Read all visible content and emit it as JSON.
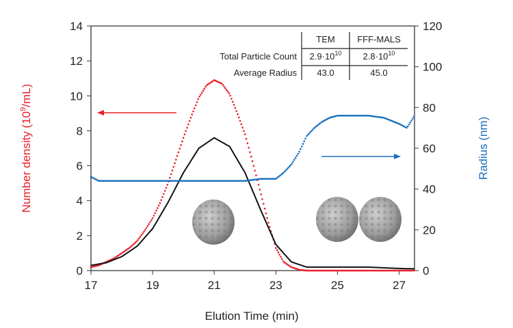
{
  "chart_data": {
    "type": "scatter",
    "xlabel": "Elution Time (min)",
    "ylabel_left": "Number density (10",
    "ylabel_left_sup": "9",
    "ylabel_left_end": "/mL)",
    "ylabel_right": "Radius (nm)",
    "xlim": [
      17,
      27.5
    ],
    "ylim_left": [
      0,
      14
    ],
    "ylim_right": [
      0,
      120
    ],
    "x_ticks": [
      "17",
      "19",
      "21",
      "23",
      "25",
      "27"
    ],
    "y_left_ticks": [
      "0",
      "2",
      "4",
      "6",
      "8",
      "10",
      "12",
      "14"
    ],
    "y_right_ticks": [
      "0",
      "20",
      "40",
      "60",
      "80",
      "100",
      "120"
    ],
    "colors": {
      "number_density": "#e8202a",
      "radius": "#1a6fbf",
      "line": "#111111"
    },
    "series": [
      {
        "axis": "left",
        "style": "scatter",
        "color": "#e8202a",
        "x": [
          17,
          17.25,
          17.5,
          17.75,
          18,
          18.25,
          18.5,
          18.75,
          19,
          19.25,
          19.5,
          19.75,
          20,
          20.25,
          20.5,
          20.75,
          21,
          21.25,
          21.5,
          21.75,
          22,
          22.25,
          22.5,
          22.75,
          23,
          23.25,
          23.5,
          23.75,
          24,
          25,
          26,
          27,
          27.5
        ],
        "y": [
          0.2,
          0.3,
          0.5,
          0.7,
          1.0,
          1.3,
          1.7,
          2.3,
          3.0,
          3.9,
          5.0,
          6.3,
          7.6,
          8.8,
          9.9,
          10.6,
          10.9,
          10.7,
          10.1,
          9.0,
          7.8,
          6.2,
          4.5,
          2.8,
          1.3,
          0.5,
          0.2,
          0.05,
          0,
          0,
          0,
          0,
          0
        ]
      },
      {
        "axis": "left",
        "style": "line",
        "color": "#111111",
        "x": [
          17,
          17.5,
          18,
          18.5,
          19,
          19.5,
          20,
          20.5,
          21,
          21.5,
          22,
          22.5,
          23,
          23.5,
          24,
          25,
          26,
          27,
          27.5
        ],
        "y": [
          0.3,
          0.45,
          0.8,
          1.4,
          2.4,
          3.9,
          5.6,
          7.0,
          7.6,
          7.1,
          5.6,
          3.5,
          1.5,
          0.5,
          0.2,
          0.2,
          0.2,
          0.12,
          0.1
        ]
      },
      {
        "axis": "right",
        "style": "scatter",
        "color": "#1a6fbf",
        "x": [
          17,
          17.25,
          17.5,
          17.75,
          18,
          18.5,
          19,
          19.5,
          20,
          20.5,
          21,
          21.5,
          22,
          22.5,
          23,
          23.25,
          23.5,
          23.75,
          24,
          24.25,
          24.5,
          24.75,
          25,
          25.5,
          26,
          26.5,
          27,
          27.25,
          27.5
        ],
        "y": [
          46,
          44,
          44,
          44,
          44,
          44,
          44,
          44,
          44,
          44,
          44,
          44,
          44,
          45,
          45,
          48,
          52,
          58,
          66,
          70,
          73,
          75,
          76,
          76,
          76,
          75,
          72,
          70,
          76
        ]
      }
    ],
    "table": {
      "headers": [
        "",
        "TEM",
        "FFF-MALS"
      ],
      "rows": [
        {
          "label": "Total Particle Count",
          "tem": "2.9·10",
          "tem_exp": "10",
          "mals": "2.8·10",
          "mals_exp": "10"
        },
        {
          "label": "Average Radius",
          "tem": "43.0",
          "mals": "45.0"
        }
      ]
    },
    "annotations": [
      "red arrow pointing to left axis",
      "blue arrow pointing to right axis",
      "virus particle images: single and dimer"
    ]
  }
}
